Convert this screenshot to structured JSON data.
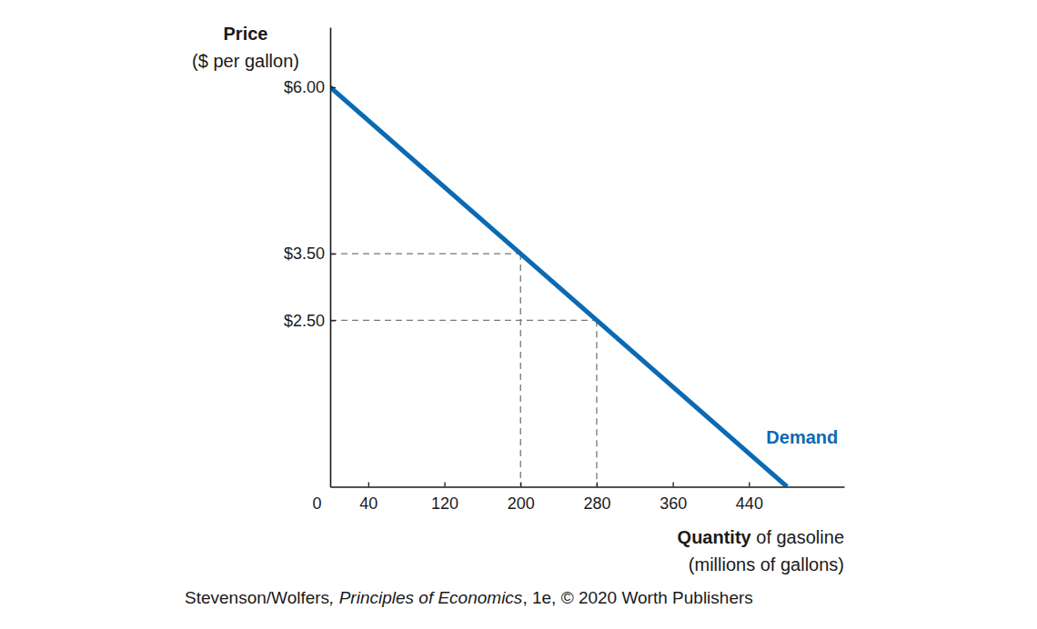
{
  "chart_data": {
    "type": "line",
    "x_label": [
      "Quantity of gasoline",
      "(millions of gallons)"
    ],
    "y_label": [
      "Price",
      "($ per gallon)"
    ],
    "source": "Stevenson/Wolfers, Principles of Economics, 1e, © 2020 Worth Publishers",
    "x": [
      0,
      480
    ],
    "series": [
      {
        "name": "Demand",
        "color": "#0a6ab4",
        "values": [
          6.0,
          0
        ]
      }
    ],
    "reference_points": {
      "x": [
        200,
        280
      ],
      "y": [
        3.5,
        2.5
      ]
    },
    "xlim": [
      0,
      540
    ],
    "xticks": [
      0,
      40,
      120,
      200,
      280,
      360,
      440
    ],
    "ylim": [
      0,
      6.9
    ],
    "yticks": [
      {
        "value": 2.5,
        "label": "$2.50"
      },
      {
        "value": 3.5,
        "label": "$3.50"
      },
      {
        "value": 6,
        "label": "$6.00"
      }
    ],
    "grid": false
  }
}
